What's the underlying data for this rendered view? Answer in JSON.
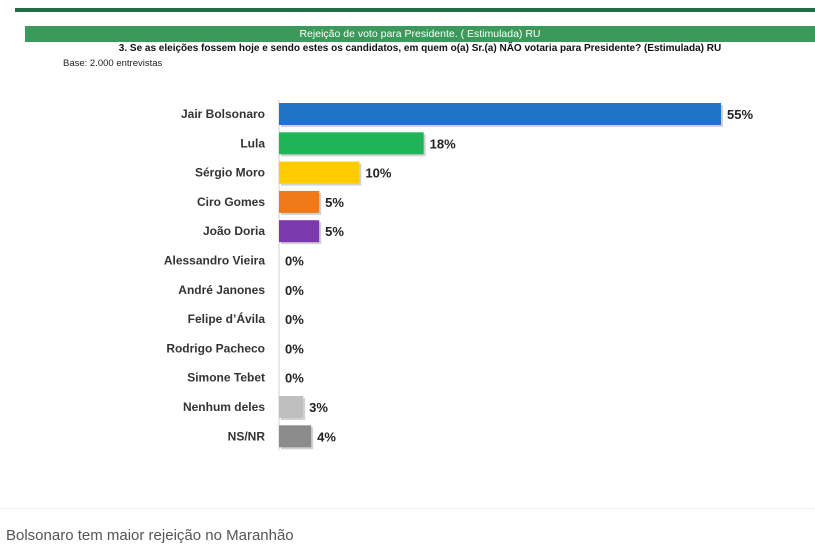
{
  "header": {
    "band_text": "Rejeição de voto para Presidente. ( Estimulada) RU",
    "question": "3. Se as eleições fossem hoje e sendo estes os candidatos, em quem o(a) Sr.(a) NÃO votaria para Presidente? (Estimulada) RU",
    "base": "Base: 2.000 entrevistas"
  },
  "caption": "Bolsonaro tem maior rejeição no Maranhão",
  "chart_data": {
    "type": "bar",
    "orientation": "horizontal",
    "categories": [
      "Jair Bolsonaro",
      "Lula",
      "Sérgio Moro",
      "Ciro Gomes",
      "João Doria",
      "Alessandro Vieira",
      "André Janones",
      "Felipe d’Ávila",
      "Rodrigo Pacheco",
      "Simone Tebet",
      "Nenhum deles",
      "NS/NR"
    ],
    "values": [
      55,
      18,
      10,
      5,
      5,
      0,
      0,
      0,
      0,
      0,
      3,
      4
    ],
    "value_labels": [
      "55%",
      "18%",
      "10%",
      "5%",
      "5%",
      "0%",
      "0%",
      "0%",
      "0%",
      "0%",
      "3%",
      "4%"
    ],
    "colors": [
      "#1f74c8",
      "#1eb457",
      "#ffcc00",
      "#f07a1a",
      "#7a3aad",
      "#cccccc",
      "#cccccc",
      "#cccccc",
      "#cccccc",
      "#cccccc",
      "#bfbfbf",
      "#8c8c8c"
    ],
    "unit": "%",
    "xlim": [
      0,
      55
    ]
  }
}
